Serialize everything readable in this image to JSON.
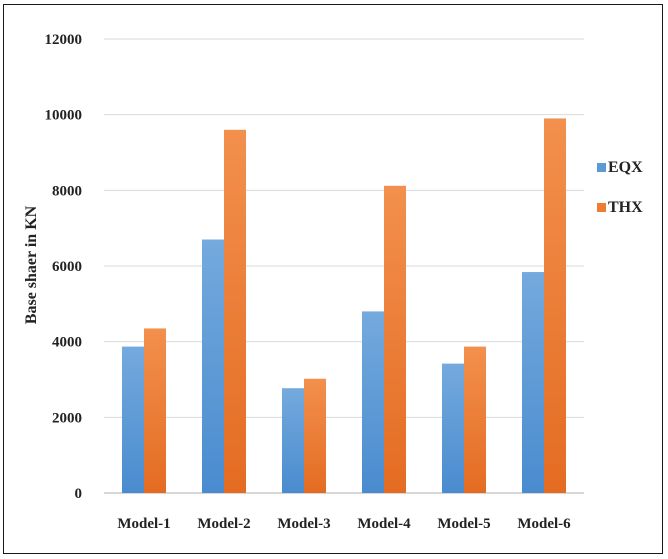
{
  "chart_data": {
    "type": "bar",
    "title": "",
    "xlabel": "",
    "ylabel": "Base shaer in KN",
    "ylim": [
      0,
      12000
    ],
    "yticks": [
      0,
      2000,
      4000,
      6000,
      8000,
      10000,
      12000
    ],
    "categories": [
      "Model-1",
      "Model-2",
      "Model-3",
      "Model-4",
      "Model-5",
      "Model-6"
    ],
    "series": [
      {
        "name": "EQX",
        "color": "#5b9bd5",
        "values": [
          3870,
          6700,
          2770,
          4800,
          3420,
          5840
        ]
      },
      {
        "name": "THX",
        "color": "#ed7d31",
        "values": [
          4350,
          9600,
          3020,
          8120,
          3870,
          9900
        ]
      }
    ],
    "grid": true,
    "legend": "right"
  }
}
